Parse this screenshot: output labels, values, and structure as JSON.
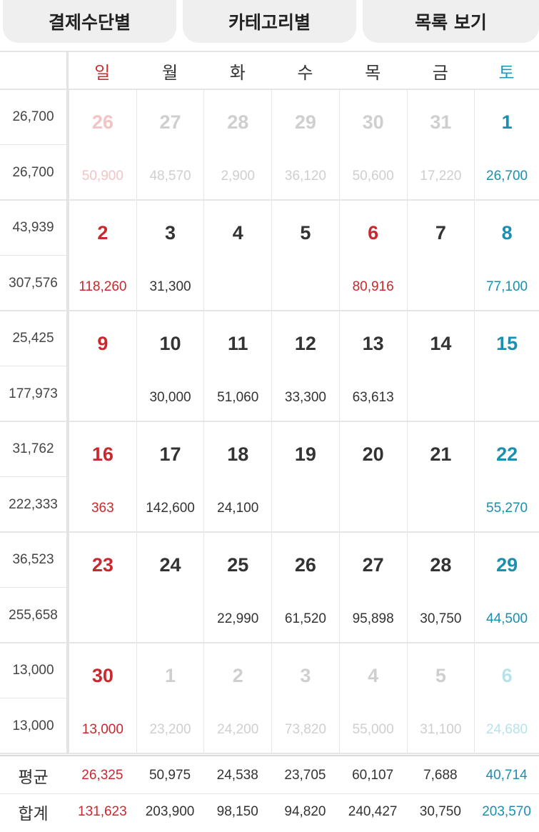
{
  "tabs": [
    "결제수단별",
    "카테고리별",
    "목록 보기"
  ],
  "weekdays": [
    "일",
    "월",
    "화",
    "수",
    "목",
    "금",
    "토"
  ],
  "colors": {
    "sunday": "#c8282e",
    "saturday": "#1a8fb0",
    "muted": "#cfcfcf"
  },
  "weeks": [
    {
      "avg": "26,700",
      "total": "26,700",
      "days": [
        {
          "d": "26",
          "a": "50,900",
          "m": true
        },
        {
          "d": "27",
          "a": "48,570",
          "m": true
        },
        {
          "d": "28",
          "a": "2,900",
          "m": true
        },
        {
          "d": "29",
          "a": "36,120",
          "m": true
        },
        {
          "d": "30",
          "a": "50,600",
          "m": true
        },
        {
          "d": "31",
          "a": "17,220",
          "m": true
        },
        {
          "d": "1",
          "a": "26,700",
          "m": false
        }
      ]
    },
    {
      "avg": "43,939",
      "total": "307,576",
      "days": [
        {
          "d": "2",
          "a": "118,260",
          "m": false
        },
        {
          "d": "3",
          "a": "31,300",
          "m": false
        },
        {
          "d": "4",
          "a": "",
          "m": false
        },
        {
          "d": "5",
          "a": "",
          "m": false
        },
        {
          "d": "6",
          "a": "80,916",
          "m": false,
          "h": true
        },
        {
          "d": "7",
          "a": "",
          "m": false
        },
        {
          "d": "8",
          "a": "77,100",
          "m": false
        }
      ]
    },
    {
      "avg": "25,425",
      "total": "177,973",
      "days": [
        {
          "d": "9",
          "a": "",
          "m": false
        },
        {
          "d": "10",
          "a": "30,000",
          "m": false
        },
        {
          "d": "11",
          "a": "51,060",
          "m": false
        },
        {
          "d": "12",
          "a": "33,300",
          "m": false
        },
        {
          "d": "13",
          "a": "63,613",
          "m": false
        },
        {
          "d": "14",
          "a": "",
          "m": false
        },
        {
          "d": "15",
          "a": "",
          "m": false
        }
      ]
    },
    {
      "avg": "31,762",
      "total": "222,333",
      "days": [
        {
          "d": "16",
          "a": "363",
          "m": false
        },
        {
          "d": "17",
          "a": "142,600",
          "m": false
        },
        {
          "d": "18",
          "a": "24,100",
          "m": false
        },
        {
          "d": "19",
          "a": "",
          "m": false
        },
        {
          "d": "20",
          "a": "",
          "m": false
        },
        {
          "d": "21",
          "a": "",
          "m": false
        },
        {
          "d": "22",
          "a": "55,270",
          "m": false
        }
      ]
    },
    {
      "avg": "36,523",
      "total": "255,658",
      "days": [
        {
          "d": "23",
          "a": "",
          "m": false
        },
        {
          "d": "24",
          "a": "",
          "m": false
        },
        {
          "d": "25",
          "a": "22,990",
          "m": false
        },
        {
          "d": "26",
          "a": "61,520",
          "m": false
        },
        {
          "d": "27",
          "a": "95,898",
          "m": false
        },
        {
          "d": "28",
          "a": "30,750",
          "m": false
        },
        {
          "d": "29",
          "a": "44,500",
          "m": false
        }
      ]
    },
    {
      "avg": "13,000",
      "total": "13,000",
      "days": [
        {
          "d": "30",
          "a": "13,000",
          "m": false
        },
        {
          "d": "1",
          "a": "23,200",
          "m": true
        },
        {
          "d": "2",
          "a": "24,200",
          "m": true
        },
        {
          "d": "3",
          "a": "73,820",
          "m": true
        },
        {
          "d": "4",
          "a": "55,000",
          "m": true
        },
        {
          "d": "5",
          "a": "31,100",
          "m": true
        },
        {
          "d": "6",
          "a": "24,680",
          "m": true
        }
      ]
    }
  ],
  "summary": {
    "avg_label": "평균",
    "total_label": "합계",
    "avg": [
      "26,325",
      "50,975",
      "24,538",
      "23,705",
      "60,107",
      "7,688",
      "40,714"
    ],
    "total": [
      "131,623",
      "203,900",
      "98,150",
      "94,820",
      "240,427",
      "30,750",
      "203,570"
    ]
  }
}
